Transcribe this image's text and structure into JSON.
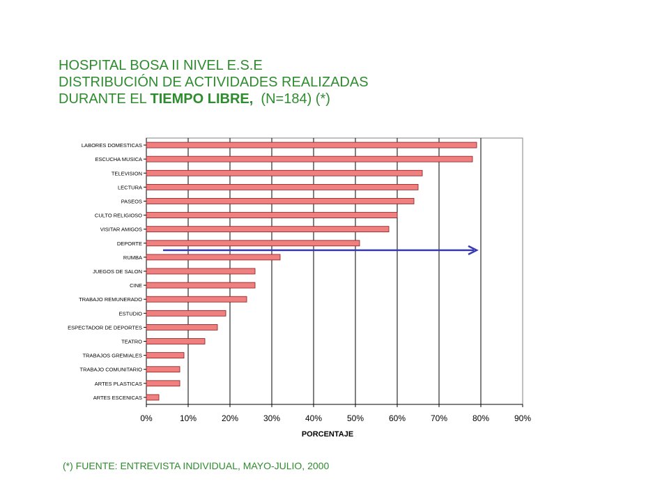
{
  "title": {
    "line1": "HOSPITAL BOSA II NIVEL E.S.E",
    "line2": "DISTRIBUCIÓN DE ACTIVIDADES REALIZADAS",
    "line3_prefix": "DURANTE EL ",
    "line3_bold": "TIEMPO LIBRE,",
    "line3_suffix": "  (N=184) (*)"
  },
  "footnote": "(*) FUENTE: ENTREVISTA INDIVIDUAL, MAYO-JULIO, 2000",
  "colors": {
    "title": "#2e8b2e",
    "bar_fill": "#f08080",
    "bar_stroke": "#8b1a1a",
    "arrow": "#3a3ab0",
    "gridline": "#000000"
  },
  "chart_data": {
    "type": "bar",
    "orientation": "horizontal",
    "xlabel": "PORCENTAJE",
    "ylabel": "",
    "xlim": [
      0,
      90
    ],
    "x_ticks": [
      "0%",
      "10%",
      "20%",
      "30%",
      "40%",
      "50%",
      "60%",
      "70%",
      "80%",
      "90%"
    ],
    "grid": true,
    "categories": [
      "LABORES DOMESTICAS",
      "ESCUCHA MUSICA",
      "TELEVISION",
      "LECTURA",
      "PASEOS",
      "CULTO RELIGIOSO",
      "VISITAR AMIGOS",
      "DEPORTE",
      "RUMBA",
      "JUEGOS DE SALON",
      "CINE",
      "TRABAJO REMUNERADO",
      "ESTUDIO",
      "ESPECTADOR DE DEPORTES",
      "TEATRO",
      "TRABAJOS GREMIALES",
      "TRABAJO COMUNITARIO",
      "ARTES PLASTICAS",
      "ARTES ESCENICAS"
    ],
    "values": [
      79,
      78,
      66,
      65,
      64,
      60,
      58,
      51,
      32,
      26,
      26,
      24,
      19,
      17,
      14,
      9,
      8,
      8,
      3
    ],
    "annotation_arrow": {
      "after_category": "DEPORTE",
      "from": 4,
      "to": 79
    }
  }
}
